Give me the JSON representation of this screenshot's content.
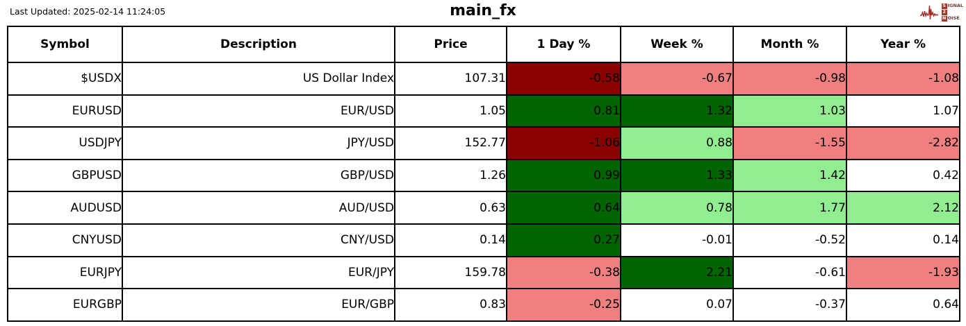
{
  "header": {
    "last_updated": "Last Updated: 2025-02-14 11:24:05",
    "title": "main_fx",
    "logo": {
      "signal_first": "S",
      "signal_rest": "IGNAL",
      "middle": "2",
      "noise_first": "N",
      "noise_rest": "OISE"
    }
  },
  "colors": {
    "strong_negative": "#8B0000",
    "negative": "#F08080",
    "strong_positive": "#006400",
    "positive": "#90EE90",
    "neutral": "#FFFFFF"
  },
  "chart_data": {
    "type": "table",
    "title": "main_fx",
    "columns": [
      "Symbol",
      "Description",
      "Price",
      "1 Day %",
      "Week %",
      "Month %",
      "Year %"
    ],
    "rows": [
      {
        "symbol": "$USDX",
        "description": "US Dollar Index",
        "price": "107.31",
        "changes": [
          {
            "value": "-0.58",
            "color": "strong_negative"
          },
          {
            "value": "-0.67",
            "color": "negative"
          },
          {
            "value": "-0.98",
            "color": "negative"
          },
          {
            "value": "-1.08",
            "color": "negative"
          }
        ]
      },
      {
        "symbol": "EURUSD",
        "description": "EUR/USD",
        "price": "1.05",
        "changes": [
          {
            "value": "0.81",
            "color": "strong_positive"
          },
          {
            "value": "1.32",
            "color": "strong_positive"
          },
          {
            "value": "1.03",
            "color": "positive"
          },
          {
            "value": "1.07",
            "color": "neutral"
          }
        ]
      },
      {
        "symbol": "USDJPY",
        "description": "JPY/USD",
        "price": "152.77",
        "changes": [
          {
            "value": "-1.06",
            "color": "strong_negative"
          },
          {
            "value": "0.88",
            "color": "positive"
          },
          {
            "value": "-1.55",
            "color": "negative"
          },
          {
            "value": "-2.82",
            "color": "negative"
          }
        ]
      },
      {
        "symbol": "GBPUSD",
        "description": "GBP/USD",
        "price": "1.26",
        "changes": [
          {
            "value": "0.99",
            "color": "strong_positive"
          },
          {
            "value": "1.33",
            "color": "strong_positive"
          },
          {
            "value": "1.42",
            "color": "positive"
          },
          {
            "value": "0.42",
            "color": "neutral"
          }
        ]
      },
      {
        "symbol": "AUDUSD",
        "description": "AUD/USD",
        "price": "0.63",
        "changes": [
          {
            "value": "0.64",
            "color": "strong_positive"
          },
          {
            "value": "0.78",
            "color": "positive"
          },
          {
            "value": "1.77",
            "color": "positive"
          },
          {
            "value": "2.12",
            "color": "positive"
          }
        ]
      },
      {
        "symbol": "CNYUSD",
        "description": "CNY/USD",
        "price": "0.14",
        "changes": [
          {
            "value": "0.27",
            "color": "strong_positive"
          },
          {
            "value": "-0.01",
            "color": "neutral"
          },
          {
            "value": "-0.52",
            "color": "neutral"
          },
          {
            "value": "0.14",
            "color": "neutral"
          }
        ]
      },
      {
        "symbol": "EURJPY",
        "description": "EUR/JPY",
        "price": "159.78",
        "changes": [
          {
            "value": "-0.38",
            "color": "negative"
          },
          {
            "value": "2.21",
            "color": "strong_positive"
          },
          {
            "value": "-0.61",
            "color": "neutral"
          },
          {
            "value": "-1.93",
            "color": "negative"
          }
        ]
      },
      {
        "symbol": "EURGBP",
        "description": "EUR/GBP",
        "price": "0.83",
        "changes": [
          {
            "value": "-0.25",
            "color": "negative"
          },
          {
            "value": "0.07",
            "color": "neutral"
          },
          {
            "value": "-0.37",
            "color": "neutral"
          },
          {
            "value": "0.64",
            "color": "neutral"
          }
        ]
      }
    ]
  }
}
